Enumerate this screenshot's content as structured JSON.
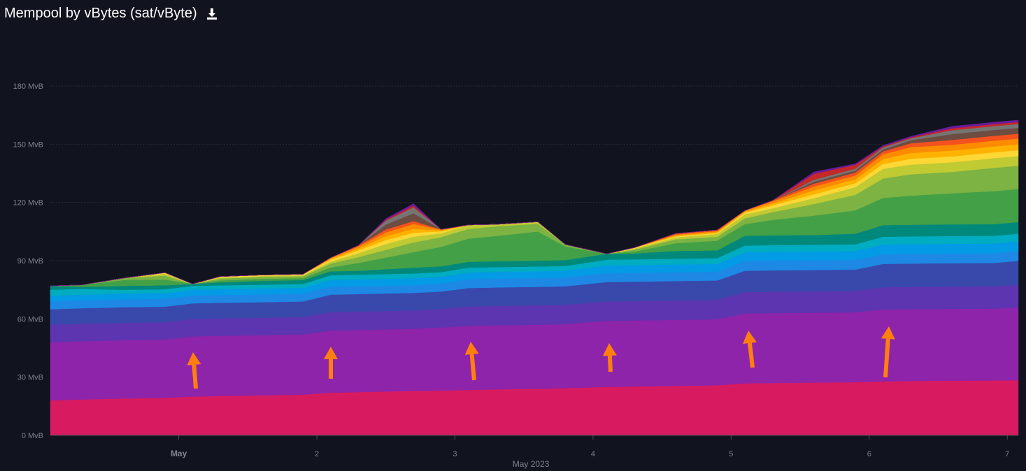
{
  "header": {
    "title": "Mempool by vBytes (sat/vByte)",
    "download_icon": "download-icon"
  },
  "chart_data": {
    "type": "area",
    "title": "Mempool by vBytes (sat/vByte)",
    "xlabel": "May 2023",
    "ylabel": "",
    "y_unit": "MvB",
    "ylim": [
      0,
      180
    ],
    "y_ticks": [
      {
        "value": 0,
        "label": "0 MvB"
      },
      {
        "value": 30,
        "label": "30 MvB"
      },
      {
        "value": 60,
        "label": "60 MvB"
      },
      {
        "value": 90,
        "label": "90 MvB"
      },
      {
        "value": 120,
        "label": "120 MvB"
      },
      {
        "value": 150,
        "label": "150 MvB"
      },
      {
        "value": 180,
        "label": "180 MvB"
      }
    ],
    "xlim": [
      0.07,
      7.08
    ],
    "x_ticks": [
      {
        "value": 1,
        "label": "May",
        "bold": true
      },
      {
        "value": 2,
        "label": "2"
      },
      {
        "value": 3,
        "label": "3"
      },
      {
        "value": 4,
        "label": "4"
      },
      {
        "value": 5,
        "label": "5"
      },
      {
        "value": 6,
        "label": "6"
      },
      {
        "value": 7,
        "label": "7"
      }
    ],
    "grid": true,
    "stacked": true,
    "x": [
      0.07,
      0.3,
      0.6,
      0.9,
      1.1,
      1.3,
      1.6,
      1.9,
      2.1,
      2.3,
      2.5,
      2.7,
      2.9,
      3.1,
      3.3,
      3.6,
      3.8,
      4.1,
      4.3,
      4.6,
      4.9,
      5.1,
      5.3,
      5.6,
      5.9,
      6.1,
      6.3,
      6.6,
      6.9,
      7.08
    ],
    "series": [
      {
        "color": "#d81b60",
        "values": [
          18,
          18.5,
          19,
          19.3,
          20,
          20.3,
          20.6,
          21,
          22,
          22.3,
          22.6,
          22.9,
          23.1,
          23.4,
          23.7,
          24,
          24.3,
          25,
          25.2,
          25.5,
          25.8,
          26.8,
          27,
          27.2,
          27.4,
          27.8,
          28,
          28.2,
          28.3,
          28.4
        ]
      },
      {
        "color": "#8e24aa",
        "values": [
          30,
          30,
          30,
          30,
          31,
          31,
          31,
          31,
          32,
          32,
          32,
          32,
          32.5,
          33,
          33,
          33,
          33,
          34,
          34,
          34,
          34,
          36,
          36,
          36,
          36,
          37,
          37,
          37,
          37,
          37.5
        ]
      },
      {
        "color": "#5e35b1",
        "values": [
          9,
          9,
          9,
          9,
          9,
          9,
          9,
          9,
          9.5,
          9.5,
          9.5,
          9.5,
          9.5,
          10,
          10,
          10,
          10,
          10,
          10,
          10,
          10,
          11,
          11,
          11,
          11,
          11.5,
          11.5,
          11.5,
          11.5,
          11.5
        ]
      },
      {
        "color": "#3949ab",
        "values": [
          8,
          8,
          8,
          8,
          8,
          8,
          8,
          8,
          9,
          9,
          9,
          9,
          9,
          9.5,
          9.5,
          9.5,
          9.5,
          10,
          10,
          10,
          10,
          11,
          11,
          11,
          11,
          12,
          12,
          12,
          12,
          12.5
        ]
      },
      {
        "color": "#1e88e5",
        "values": [
          4,
          4,
          4,
          4,
          4,
          4,
          4,
          4,
          4,
          4,
          4,
          4,
          4,
          4.5,
          4.5,
          4.5,
          4.5,
          4.5,
          4.5,
          4.5,
          4.5,
          5,
          5,
          5,
          5,
          5,
          5,
          5,
          5,
          5
        ]
      },
      {
        "color": "#039be5",
        "values": [
          3,
          3,
          3,
          3,
          3,
          3,
          3,
          3,
          3.5,
          3.5,
          3.5,
          3.5,
          3.5,
          3.5,
          3.5,
          3.5,
          3.5,
          4,
          4,
          4,
          4,
          4.5,
          4.5,
          4.5,
          4.5,
          5,
          5,
          5,
          5,
          5
        ]
      },
      {
        "color": "#00acc1",
        "values": [
          3,
          3,
          2,
          2,
          2,
          2,
          2,
          2,
          2.5,
          2.5,
          2.5,
          2.5,
          2.5,
          2.5,
          2.5,
          2.5,
          2.5,
          3,
          3,
          3,
          3,
          3.5,
          3.5,
          3.5,
          3.5,
          4,
          4,
          4,
          4,
          4
        ]
      },
      {
        "color": "#00897b",
        "values": [
          2,
          1,
          2,
          2,
          1,
          1.5,
          2,
          2,
          2,
          2,
          2.5,
          3,
          3,
          3,
          3,
          3,
          3,
          3,
          3,
          4,
          4,
          5,
          5,
          5,
          5.5,
          6,
          6,
          6,
          6,
          6
        ]
      },
      {
        "color": "#43a047",
        "values": [
          0,
          1,
          3,
          3,
          0,
          1,
          1,
          1,
          2,
          4,
          6,
          8,
          10,
          12,
          13,
          15,
          7,
          0,
          1,
          4,
          5,
          6,
          8,
          10,
          12,
          14,
          15,
          16,
          17,
          17
        ]
      },
      {
        "color": "#7cb342",
        "values": [
          0,
          0,
          1,
          2,
          0,
          1,
          1,
          1,
          2,
          3,
          4,
          5,
          5,
          5,
          5,
          4,
          1,
          0,
          1,
          2,
          2,
          3,
          4,
          6,
          8,
          10,
          11,
          11,
          12,
          12
        ]
      },
      {
        "color": "#c0ca33",
        "values": [
          0,
          0,
          0,
          1,
          0,
          0.5,
          0.5,
          0.5,
          1,
          2,
          3,
          3,
          2,
          2,
          1,
          1,
          0,
          0,
          0.5,
          1,
          1.5,
          2,
          2,
          3,
          4,
          5,
          5,
          5,
          5,
          5
        ]
      },
      {
        "color": "#fdd835",
        "values": [
          0,
          0,
          0,
          0.5,
          0,
          0.5,
          0.5,
          0.5,
          1,
          1.5,
          2,
          2,
          1,
          0,
          0,
          0,
          0,
          0,
          0.5,
          0.5,
          0.5,
          1,
          1.5,
          2,
          2,
          2.5,
          3,
          3,
          3,
          3
        ]
      },
      {
        "color": "#ffb300",
        "values": [
          0,
          0,
          0,
          0,
          0,
          0,
          0,
          0,
          0.5,
          1,
          2,
          2,
          0.5,
          0,
          0,
          0,
          0,
          0,
          0,
          0.5,
          0.5,
          0.5,
          1,
          2,
          2,
          2.5,
          3,
          3,
          3,
          3
        ]
      },
      {
        "color": "#fb8c00",
        "values": [
          0,
          0,
          0,
          0,
          0,
          0,
          0,
          0,
          0.5,
          1,
          2,
          2.5,
          0.5,
          0,
          0,
          0,
          0,
          0,
          0,
          0.5,
          0.5,
          0.5,
          1,
          2,
          2,
          2.5,
          3,
          3,
          3,
          3
        ]
      },
      {
        "color": "#f4511e",
        "values": [
          0,
          0,
          0,
          0,
          0,
          0,
          0,
          0,
          0,
          0.5,
          1.5,
          1.5,
          0,
          0,
          0,
          0,
          0,
          0,
          0,
          0.5,
          0.5,
          0,
          0.5,
          1.5,
          1.5,
          1.5,
          2,
          2.5,
          2.5,
          2.5
        ]
      },
      {
        "color": "#6d4c41",
        "values": [
          0,
          0,
          0,
          0,
          0,
          0,
          0,
          0,
          0,
          0,
          2.5,
          4,
          0,
          0,
          0,
          0,
          0,
          0,
          0,
          0,
          0,
          0,
          0,
          1,
          1,
          1,
          1.5,
          3,
          3,
          3
        ]
      },
      {
        "color": "#757575",
        "values": [
          0,
          0,
          0,
          0,
          0,
          0,
          0,
          0,
          0,
          0,
          2,
          3,
          0,
          0,
          0,
          0,
          0,
          0,
          0,
          0,
          0,
          0,
          0,
          1,
          1,
          1,
          1,
          2,
          2,
          2
        ]
      },
      {
        "color": "#c62828",
        "values": [
          0,
          0,
          0,
          0,
          0,
          0,
          0,
          0,
          0,
          0,
          0.5,
          1,
          0,
          0,
          0,
          0,
          0,
          0,
          0,
          0,
          0,
          0,
          0,
          3,
          2,
          0.5,
          0.5,
          1,
          1,
          1
        ]
      },
      {
        "color": "#6a1b9a",
        "values": [
          0,
          0,
          0,
          0,
          0,
          0,
          0,
          0,
          0,
          0,
          0.5,
          1,
          0,
          0,
          0,
          0,
          0,
          0,
          0,
          0,
          0,
          0,
          0,
          1,
          0.5,
          0.5,
          0.5,
          1,
          1,
          1
        ]
      }
    ],
    "annotations": {
      "type": "arrow",
      "color": "#ff7f0e",
      "count": 6
    }
  }
}
